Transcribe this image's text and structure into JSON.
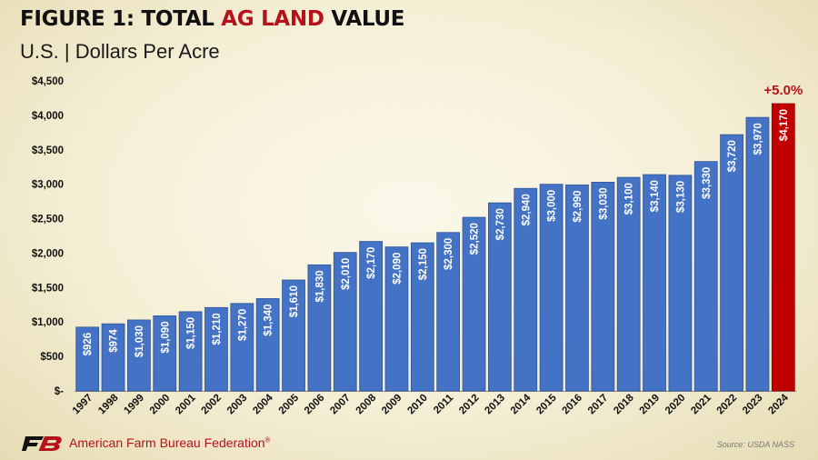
{
  "header": {
    "title_prefix": "FIGURE 1: TOTAL ",
    "title_accent": "AG LAND",
    "title_suffix": " VALUE",
    "subtitle": "U.S. | Dollars Per Acre"
  },
  "footer": {
    "organization": "American Farm Bureau Federation",
    "trademark": "®",
    "source": "Source: USDA NASS"
  },
  "colors": {
    "bar": "#4472c4",
    "highlight_bar": "#c00000",
    "accent": "#b5121b"
  },
  "chart_data": {
    "type": "bar",
    "categories": [
      "1997",
      "1998",
      "1999",
      "2000",
      "2001",
      "2002",
      "2003",
      "2004",
      "2005",
      "2006",
      "2007",
      "2008",
      "2009",
      "2010",
      "2011",
      "2012",
      "2013",
      "2014",
      "2015",
      "2016",
      "2017",
      "2018",
      "2019",
      "2020",
      "2021",
      "2022",
      "2023",
      "2024"
    ],
    "values": [
      926,
      974,
      1030,
      1090,
      1150,
      1210,
      1270,
      1340,
      1610,
      1830,
      2010,
      2170,
      2090,
      2150,
      2300,
      2520,
      2730,
      2940,
      3000,
      2990,
      3030,
      3100,
      3140,
      3130,
      3330,
      3720,
      3970,
      4170
    ],
    "data_labels": [
      "$926",
      "$974",
      "$1,030",
      "$1,090",
      "$1,150",
      "$1,210",
      "$1,270",
      "$1,340",
      "$1,610",
      "$1,830",
      "$2,010",
      "$2,170",
      "$2,090",
      "$2,150",
      "$2,300",
      "$2,520",
      "$2,730",
      "$2,940",
      "$3,000",
      "$2,990",
      "$3,030",
      "$3,100",
      "$3,140",
      "$3,130",
      "$3,330",
      "$3,720",
      "$3,970",
      "$4,170"
    ],
    "highlight_category": "2024",
    "annotation": "+5.0%",
    "y_tick_values": [
      0,
      500,
      1000,
      1500,
      2000,
      2500,
      3000,
      3500,
      4000,
      4500
    ],
    "y_tick_labels": [
      "$-",
      "$500",
      "$1,000",
      "$1,500",
      "$2,000",
      "$2,500",
      "$3,000",
      "$3,500",
      "$4,000",
      "$4,500"
    ],
    "ylim": [
      0,
      4500
    ],
    "grid": false,
    "legend": "none"
  }
}
